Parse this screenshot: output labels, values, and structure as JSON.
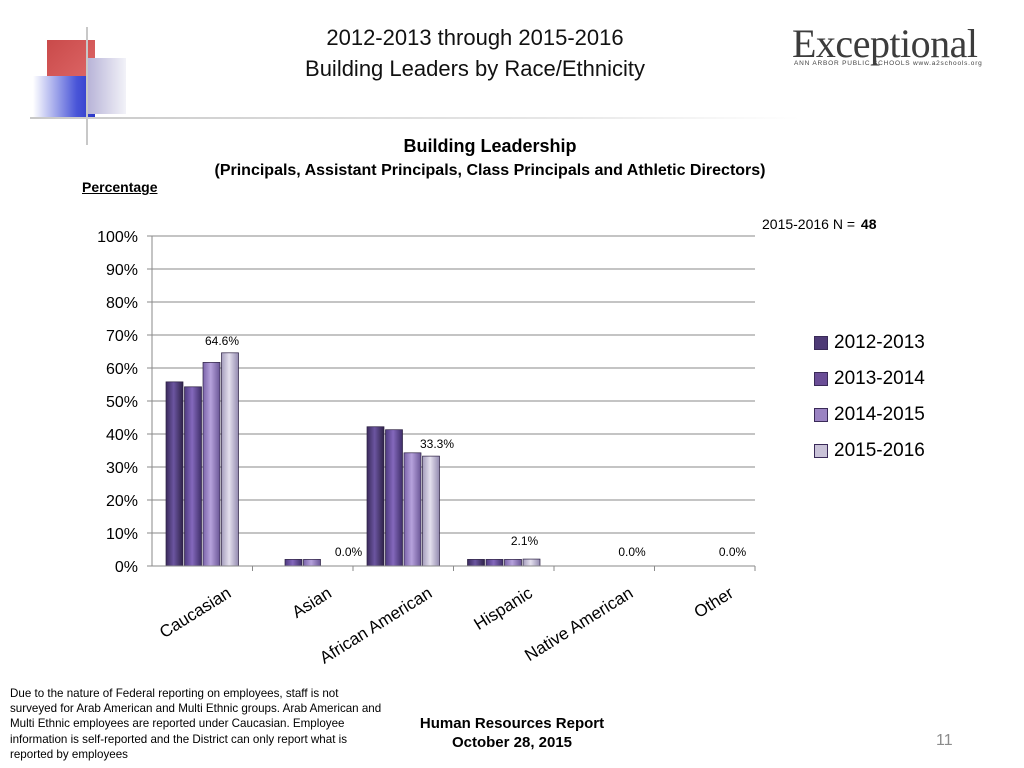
{
  "header": {
    "title_line1": "2012-2013 through 2015-2016",
    "title_line2": "Building Leaders by Race/Ethnicity"
  },
  "logo": {
    "wordmark": "Exceptional",
    "tagline": "ANN ARBOR PUBLIC SCHOOLS www.a2schools.org"
  },
  "chart_data": {
    "type": "bar",
    "title": "Building Leadership",
    "subtitle": "(Principals, Assistant Principals, Class Principals and Athletic Directors)",
    "ylabel": "Percentage",
    "xlabel": "",
    "note_label": "2015-2016 N =",
    "note_value": "48",
    "categories": [
      "Caucasian",
      "Asian",
      "African American",
      "Hispanic",
      "Native American",
      "Other"
    ],
    "series": [
      {
        "name": "2012-2013",
        "values": [
          55.8,
          0,
          42.2,
          2.0,
          0,
          0
        ]
      },
      {
        "name": "2013-2014",
        "values": [
          54.3,
          2.0,
          41.3,
          2.0,
          0,
          0
        ]
      },
      {
        "name": "2014-2015",
        "values": [
          61.7,
          2.0,
          34.3,
          2.0,
          0,
          0
        ]
      },
      {
        "name": "2015-2016",
        "values": [
          64.6,
          0,
          33.3,
          2.1,
          0,
          0
        ]
      }
    ],
    "data_labels": [
      "64.6%",
      "0.0%",
      "33.3%",
      "2.1%",
      "0.0%",
      "0.0%"
    ],
    "ylim": [
      0,
      100
    ],
    "yticks": [
      "0%",
      "10%",
      "20%",
      "30%",
      "40%",
      "50%",
      "60%",
      "70%",
      "80%",
      "90%",
      "100%"
    ],
    "grid": true,
    "legend_position": "right",
    "colors": [
      "#4e3a76",
      "#6a4d96",
      "#9a83c2",
      "#c9c2d8"
    ]
  },
  "footer": {
    "footnote": "Due to the nature of Federal reporting on employees, staff is not surveyed for Arab American and Multi Ethnic groups.  Arab American and Multi Ethnic employees are reported under Caucasian.  Employee information is self-reported and the District can only report what is reported by employees",
    "report_line1": "Human Resources  Report",
    "report_line2": "October 28, 2015",
    "page_number": "11"
  }
}
